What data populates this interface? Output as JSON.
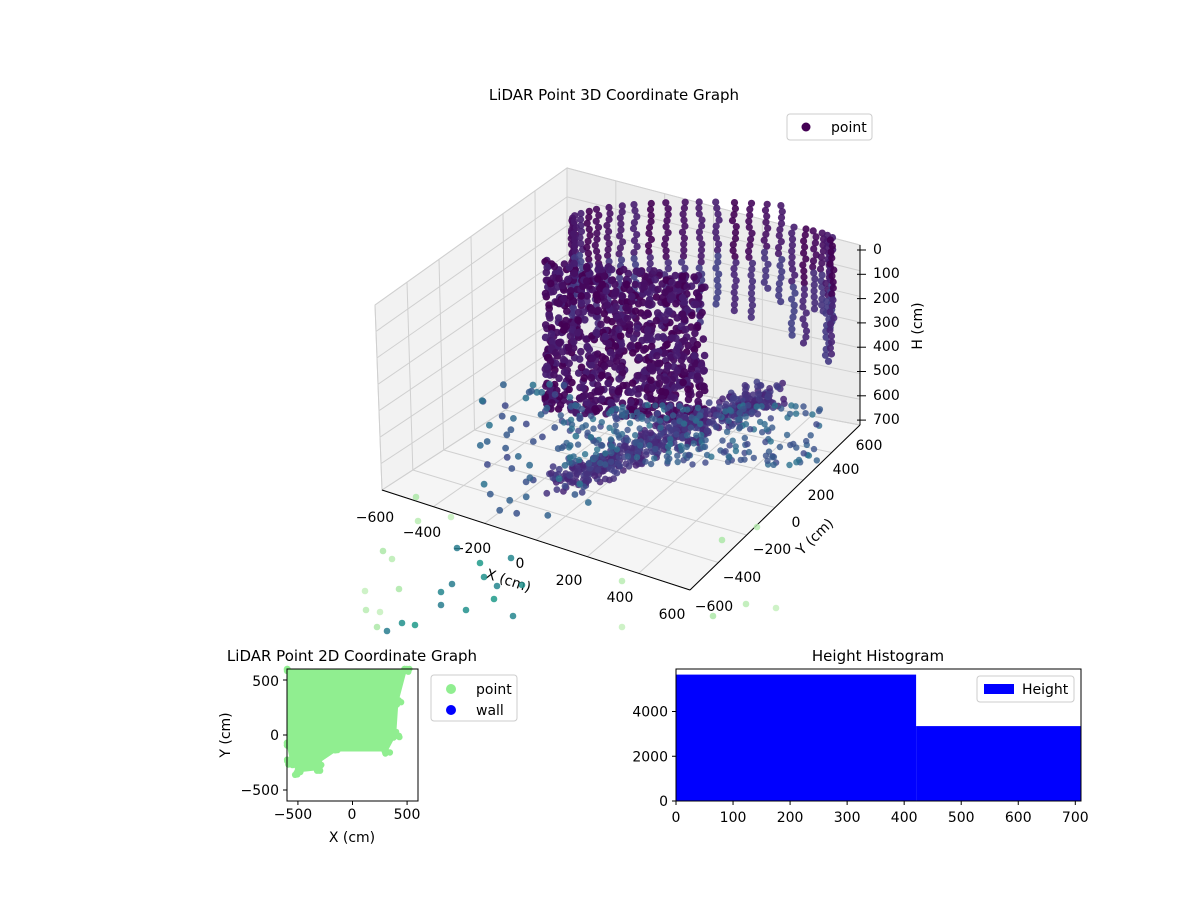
{
  "chart_data": [
    {
      "type": "scatter3d",
      "title": "LiDAR Point 3D Coordinate Graph",
      "xlabel": "X (cm)",
      "ylabel": "Y (cm)",
      "zlabel": "H (cm)",
      "x_ticks": [
        "−600",
        "−400",
        "−200",
        "0",
        "200",
        "400",
        "600"
      ],
      "y_ticks": [
        "−600",
        "−400",
        "−200",
        "0",
        "200",
        "400",
        "600"
      ],
      "z_ticks": [
        "0",
        "100",
        "200",
        "300",
        "400",
        "500",
        "600",
        "700"
      ],
      "xlim": [
        -600,
        600
      ],
      "ylim": [
        -600,
        600
      ],
      "zlim": [
        0,
        700
      ],
      "z_inverted": true,
      "grid": true,
      "legend": {
        "placement": "top-right",
        "entries": [
          "point"
        ]
      },
      "colormap": "viridis",
      "series": [
        {
          "name": "point",
          "color": "#440154",
          "description_points": [
            {
              "x": -300,
              "y": 200,
              "h": 300
            },
            {
              "x": 0,
              "y": 450,
              "h": 150
            },
            {
              "x": 300,
              "y": 400,
              "h": 250
            },
            {
              "x": 450,
              "y": 100,
              "h": 350
            },
            {
              "x": 0,
              "y": -100,
              "h": 600
            }
          ]
        }
      ]
    },
    {
      "type": "scatter",
      "title": "LiDAR Point 2D Coordinate Graph",
      "xlabel": "X (cm)",
      "ylabel": "Y (cm)",
      "x_ticks": [
        "−500",
        "0",
        "500"
      ],
      "y_ticks": [
        "−500",
        "0",
        "500"
      ],
      "xlim": [
        -600,
        600
      ],
      "ylim": [
        -600,
        600
      ],
      "legend": {
        "placement": "outside-right",
        "entries": [
          "point",
          "wall"
        ]
      },
      "series": [
        {
          "name": "point",
          "color": "#90ee90",
          "outline": [
            [
              -600,
              600
            ],
            [
              500,
              600
            ],
            [
              420,
              300
            ],
            [
              400,
              0
            ],
            [
              320,
              -150
            ],
            [
              -150,
              -150
            ],
            [
              -300,
              -250
            ],
            [
              -320,
              -320
            ],
            [
              -500,
              -340
            ],
            [
              -570,
              -250
            ],
            [
              -600,
              -100
            ]
          ]
        },
        {
          "name": "wall",
          "color": "#0000ff",
          "points": []
        }
      ]
    },
    {
      "type": "histogram",
      "title": "Height Histogram",
      "xlabel": "",
      "ylabel": "",
      "x_ticks": [
        "0",
        "100",
        "200",
        "300",
        "400",
        "500",
        "600",
        "700"
      ],
      "y_ticks": [
        "0",
        "2000",
        "4000"
      ],
      "xlim": [
        0,
        710
      ],
      "ylim": [
        0,
        5900
      ],
      "legend": {
        "placement": "top-right",
        "entries": [
          "Height"
        ]
      },
      "series": [
        {
          "name": "Height",
          "color": "#0000ff",
          "bins": [
            {
              "start": 0,
              "end": 421,
              "count": 5650
            },
            {
              "start": 421,
              "end": 710,
              "count": 3350
            }
          ]
        }
      ]
    }
  ]
}
